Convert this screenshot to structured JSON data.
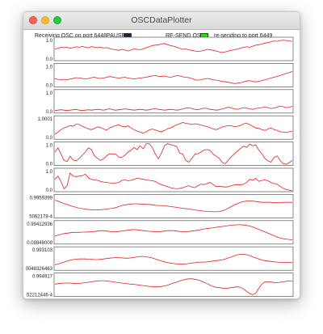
{
  "window": {
    "title": "OSCDataPlotter"
  },
  "header": {
    "receiving_label": "Receiving OSC on port 6448",
    "pause_label": "PAUSE:",
    "pause_color": "#1a2744",
    "resend_label": "RE-SEND OSC:",
    "resend_color": "#22e600",
    "resend_status": "re-sending to port 6449"
  },
  "line_color": "#e02020",
  "plots": [
    {
      "max_label": "1.0",
      "min_label": "0.0",
      "values": [
        0.52,
        0.55,
        0.6,
        0.58,
        0.6,
        0.55,
        0.58,
        0.62,
        0.6,
        0.64,
        0.6,
        0.57,
        0.63,
        0.6,
        0.58,
        0.6,
        0.56,
        0.58,
        0.54,
        0.5,
        0.48,
        0.45,
        0.5,
        0.47,
        0.42,
        0.47,
        0.52,
        0.5,
        0.48,
        0.52,
        0.58,
        0.62,
        0.68,
        0.7,
        0.72,
        0.75,
        0.78,
        0.72,
        0.68,
        0.65,
        0.6,
        0.55,
        0.5,
        0.52,
        0.48,
        0.45,
        0.42,
        0.4,
        0.42,
        0.45,
        0.5,
        0.48,
        0.45,
        0.42,
        0.38,
        0.35,
        0.38,
        0.42,
        0.45,
        0.48,
        0.52,
        0.55,
        0.6,
        0.62,
        0.6,
        0.65,
        0.7,
        0.72,
        0.75,
        0.8,
        0.82,
        0.86,
        0.9,
        0.88,
        0.92,
        0.94,
        0.92,
        0.9,
        0.88
      ]
    },
    {
      "max_label": "1.0",
      "min_label": "0.0",
      "values": [
        0.35,
        0.32,
        0.3,
        0.32,
        0.3,
        0.33,
        0.36,
        0.4,
        0.38,
        0.36,
        0.34,
        0.36,
        0.4,
        0.42,
        0.38,
        0.36,
        0.38,
        0.42,
        0.45,
        0.43,
        0.4,
        0.38,
        0.4,
        0.42,
        0.38,
        0.36,
        0.34,
        0.36,
        0.38,
        0.4,
        0.42,
        0.45,
        0.48,
        0.5,
        0.46,
        0.45,
        0.48,
        0.44,
        0.42,
        0.45,
        0.5,
        0.48,
        0.44,
        0.42,
        0.4,
        0.36,
        0.3,
        0.28,
        0.3,
        0.34,
        0.36,
        0.34,
        0.3,
        0.28,
        0.25,
        0.22,
        0.2,
        0.18,
        0.15,
        0.12,
        0.14,
        0.16,
        0.2,
        0.24,
        0.26,
        0.22,
        0.2,
        0.22,
        0.26,
        0.3,
        0.34,
        0.38,
        0.42,
        0.46,
        0.5,
        0.55,
        0.6,
        0.64,
        0.7
      ]
    },
    {
      "max_label": "1.0",
      "min_label": "0.0",
      "values": [
        0.08,
        0.1,
        0.12,
        0.1,
        0.08,
        0.1,
        0.12,
        0.14,
        0.1,
        0.08,
        0.1,
        0.12,
        0.1,
        0.12,
        0.14,
        0.12,
        0.1,
        0.14,
        0.16,
        0.12,
        0.1,
        0.12,
        0.14,
        0.16,
        0.14,
        0.12,
        0.1,
        0.12,
        0.14,
        0.12,
        0.1,
        0.12,
        0.15,
        0.18,
        0.14,
        0.12,
        0.1,
        0.12,
        0.14,
        0.12,
        0.1,
        0.12,
        0.16,
        0.2,
        0.22,
        0.18,
        0.14,
        0.12,
        0.16,
        0.2,
        0.18,
        0.14,
        0.12,
        0.1,
        0.12,
        0.16,
        0.2,
        0.24,
        0.2,
        0.16,
        0.14,
        0.18,
        0.22,
        0.2,
        0.16,
        0.14,
        0.18,
        0.2,
        0.22,
        0.26,
        0.22,
        0.18,
        0.2,
        0.24,
        0.3,
        0.26,
        0.22,
        0.24,
        0.28
      ]
    },
    {
      "max_label": "1.0001",
      "min_label": "0.0",
      "values": [
        0.2,
        0.3,
        0.42,
        0.5,
        0.55,
        0.62,
        0.58,
        0.68,
        0.66,
        0.58,
        0.52,
        0.45,
        0.42,
        0.48,
        0.55,
        0.52,
        0.45,
        0.4,
        0.5,
        0.56,
        0.62,
        0.65,
        0.58,
        0.55,
        0.6,
        0.5,
        0.42,
        0.35,
        0.3,
        0.25,
        0.32,
        0.4,
        0.45,
        0.4,
        0.35,
        0.32,
        0.38,
        0.46,
        0.5,
        0.58,
        0.65,
        0.7,
        0.76,
        0.72,
        0.7,
        0.66,
        0.7,
        0.68,
        0.64,
        0.6,
        0.56,
        0.52,
        0.45,
        0.42,
        0.48,
        0.55,
        0.58,
        0.62,
        0.6,
        0.56,
        0.58,
        0.62,
        0.7,
        0.72,
        0.66,
        0.58,
        0.5,
        0.48,
        0.42,
        0.38,
        0.45,
        0.5,
        0.42,
        0.38,
        0.32,
        0.3,
        0.28,
        0.32,
        0.35
      ]
    },
    {
      "max_label": "1.0",
      "min_label": "0.0",
      "values": [
        0.6,
        0.8,
        0.5,
        0.2,
        0.15,
        0.4,
        0.22,
        0.18,
        0.3,
        0.45,
        0.6,
        0.8,
        0.72,
        0.42,
        0.3,
        0.2,
        0.28,
        0.42,
        0.52,
        0.5,
        0.5,
        0.35,
        0.35,
        0.45,
        0.6,
        0.68,
        0.82,
        0.72,
        0.9,
        0.75,
        1.0,
        1.0,
        0.82,
        0.5,
        0.28,
        0.55,
        0.9,
        1.0,
        0.95,
        0.92,
        0.86,
        0.55,
        0.5,
        0.2,
        0.12,
        0.3,
        0.5,
        0.52,
        0.6,
        0.7,
        0.72,
        0.68,
        0.5,
        0.4,
        0.3,
        0.1,
        0.05,
        0.22,
        0.38,
        0.52,
        0.65,
        0.78,
        0.88,
        0.82,
        0.98,
        0.9,
        0.94,
        0.7,
        0.52,
        0.3,
        0.18,
        0.12,
        0.35,
        0.42,
        0.2,
        0.05,
        0.02,
        0.1,
        0.2
      ]
    },
    {
      "max_label": "1.0",
      "min_label": "0.0",
      "values": [
        0.55,
        0.7,
        0.45,
        0.1,
        0.25,
        0.85,
        0.7,
        0.68,
        0.7,
        0.72,
        0.8,
        0.62,
        0.55,
        0.52,
        0.5,
        0.45,
        0.42,
        0.4,
        0.38,
        0.35,
        0.38,
        0.4,
        0.5,
        0.52,
        0.48,
        0.5,
        0.55,
        0.6,
        0.58,
        0.55,
        0.52,
        0.5,
        0.48,
        0.45,
        0.35,
        0.3,
        0.25,
        0.2,
        0.15,
        0.12,
        0.1,
        0.12,
        0.15,
        0.2,
        0.25,
        0.18,
        0.15,
        0.25,
        0.32,
        0.3,
        0.35,
        0.4,
        0.3,
        0.2,
        0.22,
        0.2,
        0.18,
        0.2,
        0.25,
        0.28,
        0.3,
        0.28,
        0.32,
        0.4,
        0.55,
        0.5,
        0.6,
        0.45,
        0.5,
        0.52,
        0.48,
        0.4,
        0.35,
        0.32,
        0.22,
        0.12,
        0.06,
        0.03,
        0.0
      ]
    },
    {
      "max_label": "0.9959399",
      "min_label": "5062178-4",
      "values": [
        0.8,
        0.76,
        0.7,
        0.64,
        0.6,
        0.55,
        0.5,
        0.46,
        0.42,
        0.4,
        0.38,
        0.36,
        0.35,
        0.34,
        0.34,
        0.35,
        0.36,
        0.38,
        0.4,
        0.42,
        0.45,
        0.5,
        0.55,
        0.58,
        0.6,
        0.62,
        0.63,
        0.63,
        0.62,
        0.62,
        0.6,
        0.6,
        0.58,
        0.56,
        0.55,
        0.55,
        0.54,
        0.52,
        0.5,
        0.48,
        0.46,
        0.44,
        0.42,
        0.4,
        0.38,
        0.36,
        0.34,
        0.32,
        0.3,
        0.28,
        0.27,
        0.26,
        0.25,
        0.25,
        0.26,
        0.3,
        0.35,
        0.42,
        0.5,
        0.58,
        0.64,
        0.7,
        0.74,
        0.76,
        0.77,
        0.76,
        0.74,
        0.72,
        0.7,
        0.7,
        0.7,
        0.7,
        0.68,
        0.68,
        0.69,
        0.7,
        0.7,
        0.7,
        0.7
      ]
    },
    {
      "max_label": "0.99412936",
      "min_label": "0.09848009",
      "values": [
        0.35,
        0.38,
        0.42,
        0.46,
        0.48,
        0.5,
        0.52,
        0.52,
        0.52,
        0.53,
        0.53,
        0.54,
        0.55,
        0.56,
        0.58,
        0.6,
        0.6,
        0.58,
        0.56,
        0.55,
        0.55,
        0.56,
        0.58,
        0.6,
        0.62,
        0.64,
        0.65,
        0.64,
        0.62,
        0.6,
        0.58,
        0.57,
        0.56,
        0.55,
        0.55,
        0.56,
        0.58,
        0.6,
        0.6,
        0.6,
        0.58,
        0.56,
        0.55,
        0.55,
        0.56,
        0.58,
        0.6,
        0.62,
        0.65,
        0.68,
        0.7,
        0.72,
        0.74,
        0.76,
        0.78,
        0.8,
        0.82,
        0.84,
        0.86,
        0.87,
        0.88,
        0.88,
        0.87,
        0.85,
        0.82,
        0.78,
        0.72,
        0.66,
        0.6,
        0.54,
        0.48,
        0.42,
        0.36,
        0.3,
        0.25,
        0.22,
        0.2,
        0.18,
        0.16
      ]
    },
    {
      "max_label": "0.993103",
      "min_label": "0048326463",
      "values": [
        0.22,
        0.26,
        0.3,
        0.35,
        0.4,
        0.44,
        0.47,
        0.49,
        0.5,
        0.5,
        0.5,
        0.49,
        0.48,
        0.47,
        0.47,
        0.48,
        0.5,
        0.52,
        0.54,
        0.55,
        0.56,
        0.56,
        0.55,
        0.54,
        0.54,
        0.55,
        0.57,
        0.6,
        0.62,
        0.62,
        0.6,
        0.58,
        0.55,
        0.5,
        0.45,
        0.4,
        0.36,
        0.33,
        0.3,
        0.28,
        0.26,
        0.25,
        0.25,
        0.26,
        0.28,
        0.3,
        0.32,
        0.34,
        0.35,
        0.35,
        0.36,
        0.38,
        0.4,
        0.42,
        0.44,
        0.46,
        0.5,
        0.55,
        0.6,
        0.65,
        0.7,
        0.72,
        0.72,
        0.7,
        0.66,
        0.6,
        0.55,
        0.5,
        0.45,
        0.42,
        0.4,
        0.38,
        0.36,
        0.35,
        0.34,
        0.34,
        0.33,
        0.33,
        0.33
      ]
    },
    {
      "max_label": "0.994917",
      "min_label": "52212446-4",
      "values": [
        0.55,
        0.57,
        0.59,
        0.6,
        0.6,
        0.6,
        0.59,
        0.58,
        0.58,
        0.6,
        0.62,
        0.64,
        0.66,
        0.68,
        0.7,
        0.71,
        0.71,
        0.7,
        0.68,
        0.66,
        0.64,
        0.62,
        0.6,
        0.58,
        0.56,
        0.55,
        0.54,
        0.52,
        0.5,
        0.48,
        0.46,
        0.44,
        0.43,
        0.42,
        0.42,
        0.44,
        0.46,
        0.5,
        0.55,
        0.6,
        0.65,
        0.7,
        0.74,
        0.78,
        0.8,
        0.8,
        0.78,
        0.75,
        0.7,
        0.64,
        0.57,
        0.5,
        0.44,
        0.4,
        0.38,
        0.36,
        0.35,
        0.36,
        0.38,
        0.4,
        0.42,
        0.4,
        0.32,
        0.2,
        0.1,
        0.05,
        0.12,
        0.35,
        0.55,
        0.65,
        0.65,
        0.65,
        0.62,
        0.62,
        0.64,
        0.66,
        0.68,
        0.7,
        0.7
      ]
    }
  ]
}
